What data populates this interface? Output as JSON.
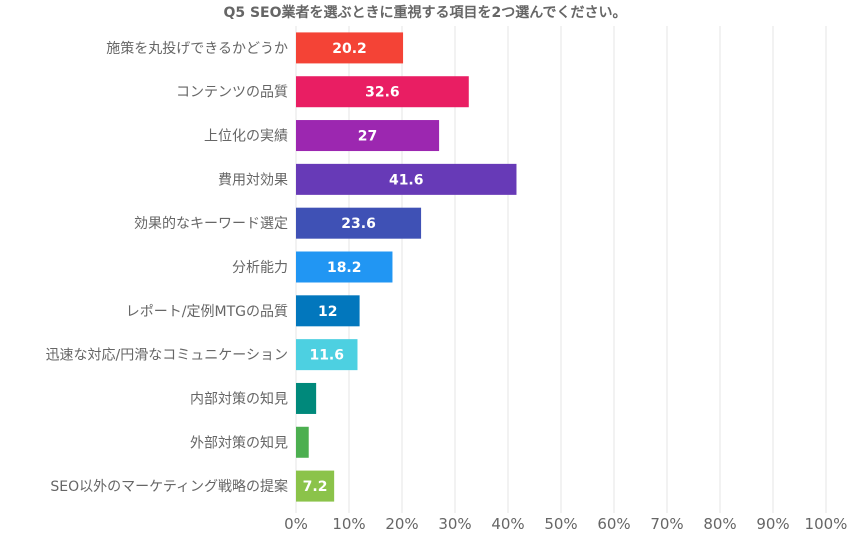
{
  "chart_data": {
    "type": "bar",
    "orientation": "horizontal",
    "title": "Q5 SEO業者を選ぶときに重視する項目を2つ選んでください。",
    "categories": [
      "施策を丸投げできるかどうか",
      "コンテンツの品質",
      "上位化の実績",
      "費用対効果",
      "効果的なキーワード選定",
      "分析能力",
      "レポート/定例MTGの品質",
      "迅速な対応/円滑なコミュニケーション",
      "内部対策の知見",
      "外部対策の知見",
      "SEO以外のマーケティング戦略の提案"
    ],
    "values": [
      20.2,
      32.6,
      27,
      41.6,
      23.6,
      18.2,
      12,
      11.6,
      3.8,
      2.4,
      7.2
    ],
    "data_labels": [
      "20.2",
      "32.6",
      "27",
      "41.6",
      "23.6",
      "18.2",
      "12",
      "11.6",
      "",
      "",
      "7.2"
    ],
    "colors": [
      "#f44336",
      "#e91e63",
      "#9c27b0",
      "#673ab7",
      "#3f51b5",
      "#2196f3",
      "#0277bd",
      "#4dd0e1",
      "#00897b",
      "#4caf50",
      "#8bc34a"
    ],
    "xlim": [
      0,
      100
    ],
    "xticks": [
      0,
      10,
      20,
      30,
      40,
      50,
      60,
      70,
      80,
      90,
      100
    ],
    "xtick_labels": [
      "0%",
      "10%",
      "20%",
      "30%",
      "40%",
      "50%",
      "60%",
      "70%",
      "80%",
      "90%",
      "100%"
    ],
    "xlabel": "",
    "ylabel": "",
    "grid": true
  }
}
